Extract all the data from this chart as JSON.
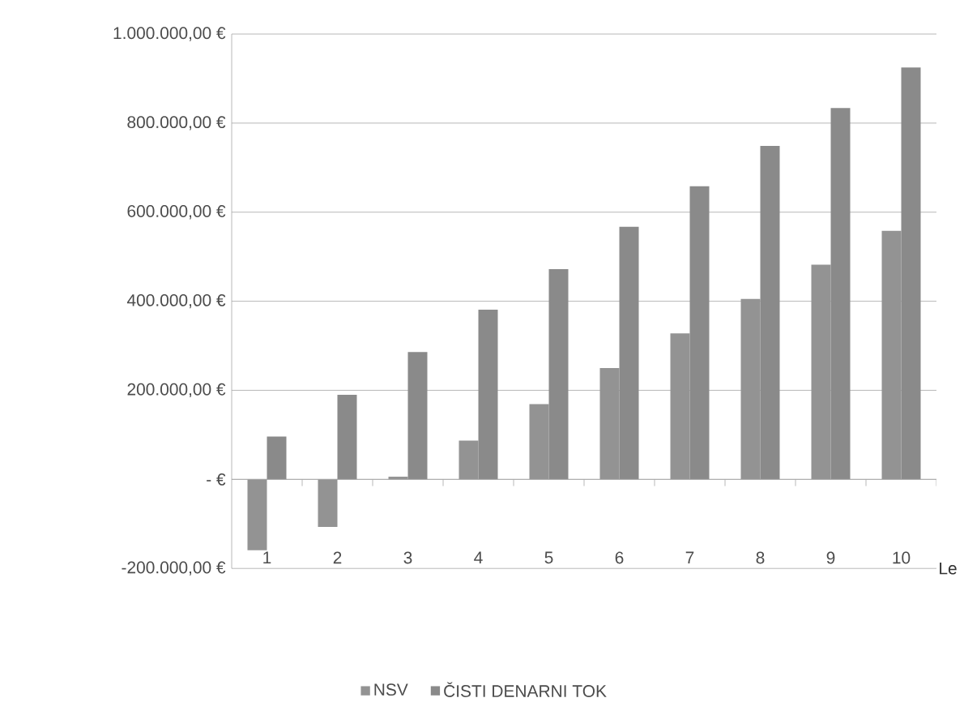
{
  "chart_data": {
    "type": "bar",
    "xlabel": "Le",
    "categories": [
      "1",
      "2",
      "3",
      "4",
      "5",
      "6",
      "7",
      "8",
      "9",
      "10"
    ],
    "series": [
      {
        "name": "NSV",
        "color": "#939393",
        "values": [
          -159000,
          -107000,
          6000,
          87000,
          169000,
          250000,
          328000,
          405000,
          482000,
          558000
        ]
      },
      {
        "name": "ČISTI DENARNI TOK",
        "color": "#8a8a8a",
        "values": [
          96000,
          190000,
          286000,
          381000,
          472000,
          567000,
          658000,
          749000,
          834000,
          925000
        ]
      }
    ],
    "ylim": [
      -200000,
      1000000
    ],
    "yticks": [
      {
        "value": -200000,
        "label": "-200.000,00 €"
      },
      {
        "value": 0,
        "label": "-  €"
      },
      {
        "value": 200000,
        "label": "200.000,00 €"
      },
      {
        "value": 400000,
        "label": "400.000,00 €"
      },
      {
        "value": 600000,
        "label": "600.000,00 €"
      },
      {
        "value": 800000,
        "label": "800.000,00 €"
      },
      {
        "value": 1000000,
        "label": "1.000.000,00 €"
      }
    ],
    "grid": "y",
    "legend": "bottom"
  }
}
